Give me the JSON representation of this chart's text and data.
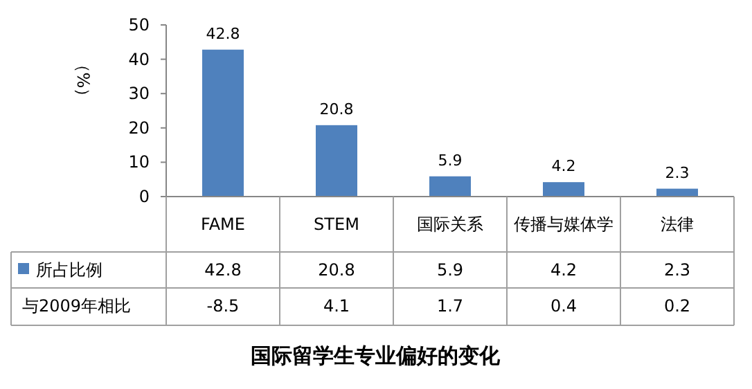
{
  "chart_data": {
    "type": "bar",
    "title": "国际留学生专业偏好的变化",
    "ylabel": "（%）",
    "categories": [
      "FAME",
      "STEM",
      "国际关系",
      "传播与媒体学",
      "法律"
    ],
    "series": [
      {
        "name": "所占比例",
        "color": "#4f81bd",
        "values": [
          42.8,
          20.8,
          5.9,
          4.2,
          2.3
        ],
        "value_labels": [
          "42.8",
          "20.8",
          "5.9",
          "4.2",
          "2.3"
        ]
      }
    ],
    "annotations": [
      "42.8",
      "20.8",
      "5.9",
      "4.2",
      "2.3",
      "与2009年相比",
      "-8.5",
      "4.1",
      "1.7",
      "0.4",
      "0.2"
    ],
    "ylim": [
      0,
      50
    ],
    "yticks": [
      0,
      10,
      20,
      30,
      40,
      50
    ],
    "data_labels": true,
    "legend": "bottom"
  }
}
